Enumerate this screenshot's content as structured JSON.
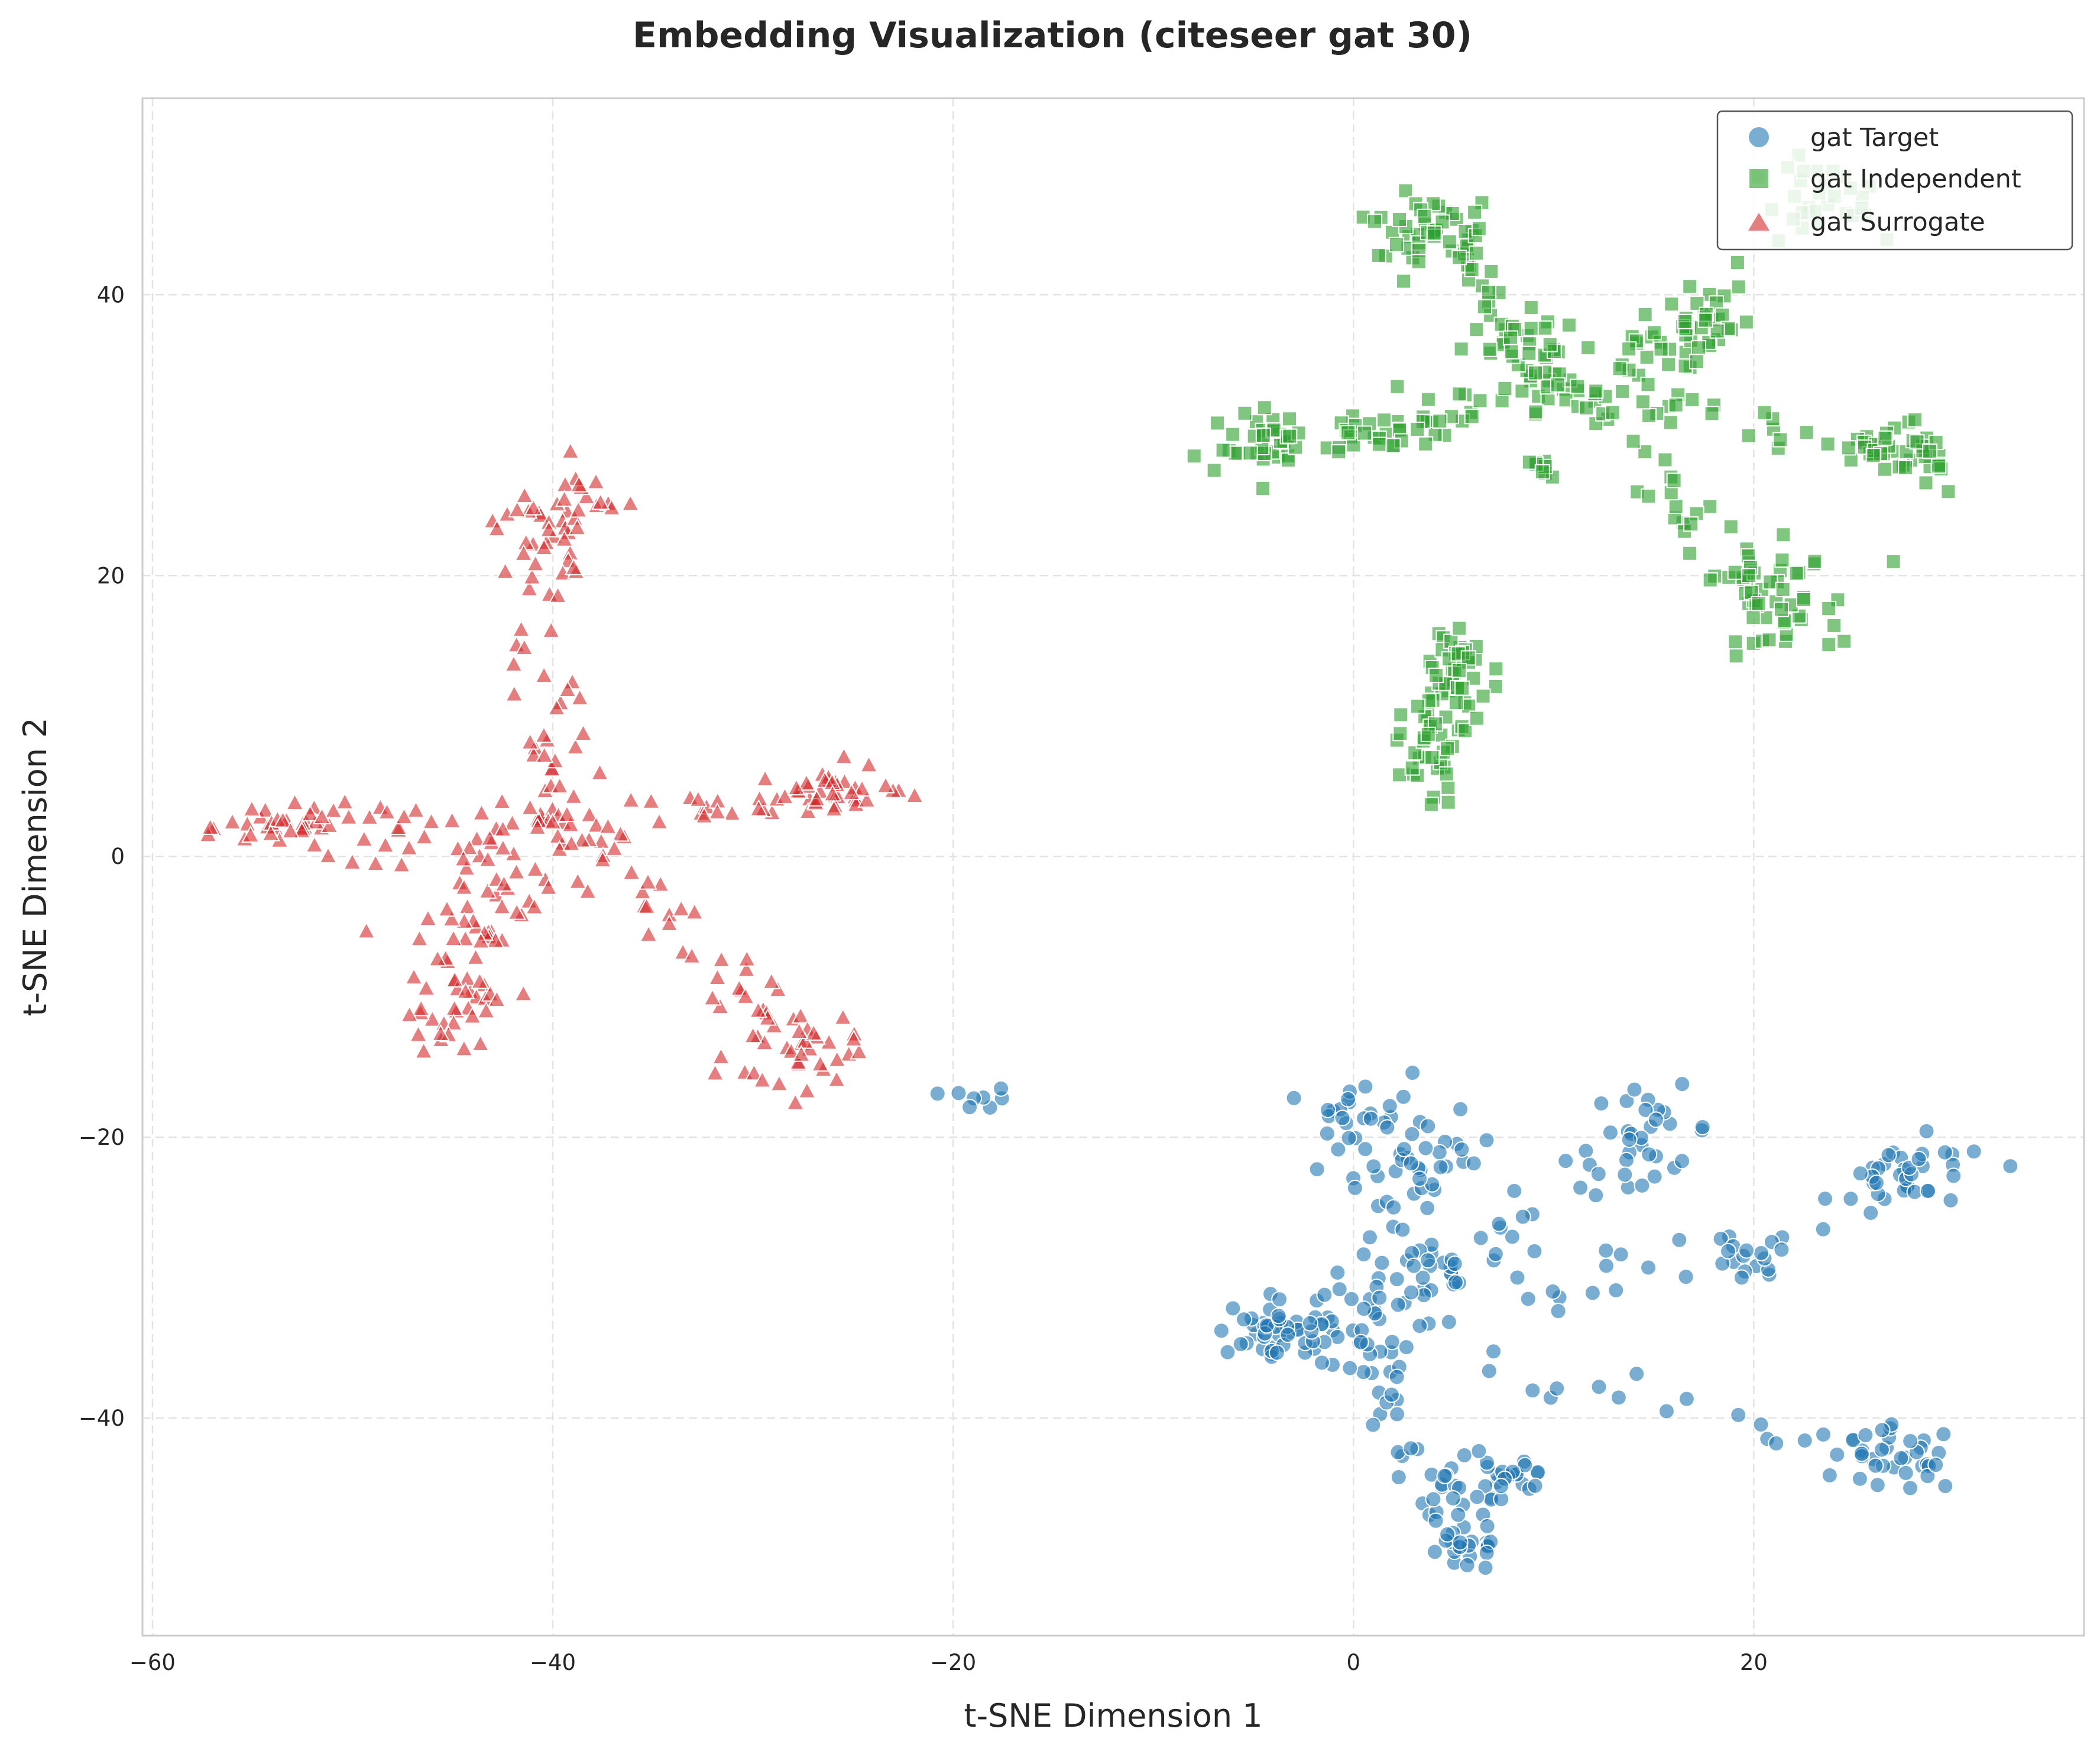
{
  "chart_data": {
    "type": "scatter",
    "title": "Embedding Visualization (citeseer gat 30)",
    "xlabel": "t-SNE Dimension 1",
    "ylabel": "t-SNE Dimension 2",
    "xlim": [
      -60.5,
      36.5
    ],
    "ylim": [
      -55.5,
      54
    ],
    "xticks": [
      -60,
      -40,
      -20,
      0,
      20
    ],
    "yticks": [
      40,
      20,
      0,
      -20,
      -40
    ],
    "xtick_labels": [
      "−60",
      "−40",
      "−20",
      "0",
      "20"
    ],
    "ytick_labels": [
      "40",
      "20",
      "0",
      "−20",
      "−40"
    ],
    "grid": true,
    "legend_position": "top-right",
    "colors": {
      "target": "#1f77b4",
      "independent": "#2ca02c",
      "surrogate": "#d62728"
    },
    "series": [
      {
        "name": "gat Target",
        "marker": "circle",
        "arms": [
          {
            "from": [
              0,
              -34
            ],
            "to": [
              -6,
              -34
            ],
            "n": 28
          },
          {
            "from": [
              0,
              -34
            ],
            "to": [
              6,
              -50
            ],
            "n": 40
          },
          {
            "from": [
              0,
              -34
            ],
            "to": [
              16,
              -19
            ],
            "n": 35
          },
          {
            "from": [
              0,
              -34
            ],
            "to": [
              19,
              -28
            ],
            "n": 20
          },
          {
            "from": [
              0,
              -34
            ],
            "to": [
              28,
              -43
            ],
            "n": 30
          },
          {
            "from": [
              0,
              -34
            ],
            "to": [
              3,
              -22
            ],
            "n": 20
          },
          {
            "from": [
              0,
              -34
            ],
            "to": [
              0,
              -17
            ],
            "n": 15
          }
        ],
        "clusters": [
          {
            "center": [
              0.5,
              -17.5
            ],
            "spread": [
              1.2,
              1.2
            ],
            "n": 18
          },
          {
            "center": [
              4,
              -21.5
            ],
            "spread": [
              1.5,
              1.5
            ],
            "n": 25
          },
          {
            "center": [
              15,
              -19.5
            ],
            "spread": [
              1.5,
              1.5
            ],
            "n": 22
          },
          {
            "center": [
              -4.5,
              -33.5
            ],
            "spread": [
              1.3,
              1.0
            ],
            "n": 22
          },
          {
            "center": [
              3.5,
              -30
            ],
            "spread": [
              1.5,
              1.2
            ],
            "n": 16
          },
          {
            "center": [
              7.5,
              -44
            ],
            "spread": [
              1.4,
              1.6
            ],
            "n": 28
          },
          {
            "center": [
              5.5,
              -49
            ],
            "spread": [
              1.2,
              1.0
            ],
            "n": 16
          },
          {
            "center": [
              19.5,
              -29
            ],
            "spread": [
              1.2,
              1.2
            ],
            "n": 16
          },
          {
            "center": [
              27.5,
              -43
            ],
            "spread": [
              1.4,
              1.2
            ],
            "n": 28
          },
          {
            "center": [
              28,
              -23
            ],
            "spread": [
              2.0,
              1.4
            ],
            "n": 38
          },
          {
            "center": [
              -18.5,
              -17.3
            ],
            "spread": [
              0.8,
              0.4
            ],
            "n": 8
          }
        ]
      },
      {
        "name": "gat Independent",
        "marker": "square",
        "arms": [
          {
            "from": [
              11,
              33
            ],
            "to": [
              -6,
              29
            ],
            "n": 40
          },
          {
            "from": [
              11,
              33
            ],
            "to": [
              3,
              46
            ],
            "n": 35
          },
          {
            "from": [
              11,
              33
            ],
            "to": [
              18,
              38
            ],
            "n": 25
          },
          {
            "from": [
              11,
              33
            ],
            "to": [
              29,
              28
            ],
            "n": 38
          },
          {
            "from": [
              11,
              33
            ],
            "to": [
              22,
              16
            ],
            "n": 38
          },
          {
            "from": [
              4,
              5
            ],
            "to": [
              5.5,
              16
            ],
            "n": 35
          }
        ],
        "clusters": [
          {
            "center": [
              -4,
              29.5
            ],
            "spread": [
              1.4,
              1.2
            ],
            "n": 30
          },
          {
            "center": [
              2,
              29.5
            ],
            "spread": [
              1.5,
              1.2
            ],
            "n": 18
          },
          {
            "center": [
              3.5,
              45
            ],
            "spread": [
              1.6,
              1.8
            ],
            "n": 38
          },
          {
            "center": [
              8,
              36.5
            ],
            "spread": [
              1.3,
              1.3
            ],
            "n": 22
          },
          {
            "center": [
              17.5,
              38
            ],
            "spread": [
              1.3,
              1.8
            ],
            "n": 30
          },
          {
            "center": [
              23,
              47
            ],
            "spread": [
              1.6,
              1.3
            ],
            "n": 30
          },
          {
            "center": [
              28,
              29
            ],
            "spread": [
              1.5,
              1.2
            ],
            "n": 26
          },
          {
            "center": [
              21,
              18.5
            ],
            "spread": [
              1.7,
              2.0
            ],
            "n": 40
          },
          {
            "center": [
              9.5,
              27.5
            ],
            "spread": [
              0.6,
              0.4
            ],
            "n": 8
          },
          {
            "center": [
              4,
              8
            ],
            "spread": [
              1.0,
              1.8
            ],
            "n": 25
          },
          {
            "center": [
              5,
              14
            ],
            "spread": [
              0.8,
              1.2
            ],
            "n": 18
          }
        ]
      },
      {
        "name": "gat Surrogate",
        "marker": "triangle",
        "arms": [
          {
            "from": [
              -40,
              2
            ],
            "to": [
              -55,
              2
            ],
            "n": 45
          },
          {
            "from": [
              -40,
              2
            ],
            "to": [
              -40,
              25
            ],
            "n": 40
          },
          {
            "from": [
              -40,
              2
            ],
            "to": [
              -23,
              5
            ],
            "n": 42
          },
          {
            "from": [
              -40,
              2
            ],
            "to": [
              -26,
              -15
            ],
            "n": 40
          },
          {
            "from": [
              -40,
              2
            ],
            "to": [
              -46,
              -13
            ],
            "n": 30
          }
        ],
        "clusters": [
          {
            "center": [
              -53,
              2
            ],
            "spread": [
              1.6,
              0.8
            ],
            "n": 20
          },
          {
            "center": [
              -40.5,
              23
            ],
            "spread": [
              1.6,
              2.0
            ],
            "n": 30
          },
          {
            "center": [
              -38.5,
              25.5
            ],
            "spread": [
              0.8,
              1.0
            ],
            "n": 12
          },
          {
            "center": [
              -26,
              4.5
            ],
            "spread": [
              1.8,
              1.0
            ],
            "n": 24
          },
          {
            "center": [
              -28,
              -14
            ],
            "spread": [
              1.6,
              1.6
            ],
            "n": 30
          },
          {
            "center": [
              -45,
              -11
            ],
            "spread": [
              1.6,
              1.4
            ],
            "n": 24
          },
          {
            "center": [
              -44,
              -3
            ],
            "spread": [
              2.0,
              2.0
            ],
            "n": 30
          }
        ]
      }
    ]
  }
}
